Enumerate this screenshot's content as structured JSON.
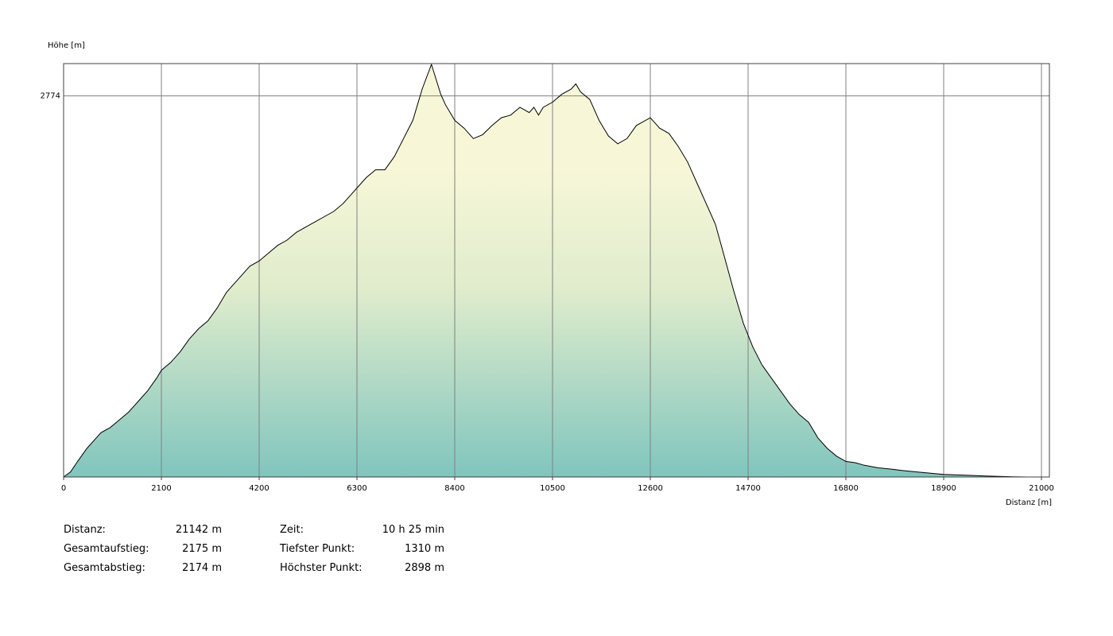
{
  "chart_data": {
    "type": "area",
    "ylabel": "Höhe [m]",
    "xlabel": "Distanz [m]",
    "xlim": [
      0,
      21142
    ],
    "ylim": [
      1310,
      2898
    ],
    "x_ticks": [
      0,
      2100,
      4200,
      6300,
      8400,
      10500,
      12600,
      14700,
      16800,
      18900,
      21000
    ],
    "x_tick_labels": [
      "0",
      "2100",
      "4200",
      "6300",
      "8400",
      "10500",
      "12600",
      "14700",
      "16800",
      "18900",
      "21000"
    ],
    "y_ticks": [
      2774
    ],
    "y_tick_labels": [
      "2774"
    ],
    "grid": true,
    "x": [
      0,
      150,
      300,
      500,
      700,
      800,
      1000,
      1200,
      1400,
      1600,
      1800,
      2000,
      2100,
      2300,
      2500,
      2700,
      2900,
      3100,
      3300,
      3500,
      3700,
      3900,
      4000,
      4200,
      4400,
      4600,
      4800,
      5000,
      5200,
      5400,
      5600,
      5800,
      6000,
      6200,
      6300,
      6500,
      6700,
      6900,
      7100,
      7300,
      7500,
      7700,
      7900,
      8100,
      8200,
      8400,
      8600,
      8800,
      9000,
      9200,
      9400,
      9600,
      9800,
      10000,
      10100,
      10200,
      10300,
      10500,
      10700,
      10900,
      11000,
      11100,
      11300,
      11500,
      11600,
      11700,
      11900,
      12100,
      12300,
      12600,
      12800,
      13000,
      13200,
      13400,
      13600,
      13800,
      14000,
      14200,
      14400,
      14600,
      14800,
      15000,
      15200,
      15400,
      15600,
      15800,
      16000,
      16200,
      16400,
      16600,
      16700,
      16800,
      17000,
      17200,
      17500,
      17800,
      18000,
      18300,
      18600,
      18900,
      19200,
      19500,
      19800,
      20100,
      20400,
      20700,
      21000,
      21142
    ],
    "y": [
      1310,
      1330,
      1370,
      1420,
      1460,
      1480,
      1500,
      1530,
      1560,
      1600,
      1640,
      1690,
      1720,
      1750,
      1790,
      1840,
      1880,
      1910,
      1960,
      2020,
      2060,
      2100,
      2120,
      2140,
      2170,
      2200,
      2220,
      2250,
      2270,
      2290,
      2310,
      2330,
      2360,
      2400,
      2420,
      2460,
      2490,
      2490,
      2540,
      2610,
      2680,
      2800,
      2895,
      2780,
      2740,
      2680,
      2650,
      2610,
      2625,
      2660,
      2690,
      2700,
      2730,
      2710,
      2730,
      2700,
      2730,
      2750,
      2780,
      2800,
      2820,
      2790,
      2760,
      2680,
      2650,
      2620,
      2590,
      2610,
      2660,
      2690,
      2650,
      2630,
      2580,
      2520,
      2440,
      2360,
      2280,
      2150,
      2020,
      1900,
      1810,
      1740,
      1690,
      1640,
      1590,
      1550,
      1520,
      1460,
      1420,
      1390,
      1380,
      1370,
      1365,
      1355,
      1345,
      1340,
      1335,
      1330,
      1325,
      1320,
      1318,
      1316,
      1314,
      1312,
      1311,
      1310,
      1310,
      1310
    ]
  },
  "stats": {
    "distance_label": "Distanz:",
    "distance_value": "21142 m",
    "ascent_label": "Gesamtaufstieg:",
    "ascent_value": "2175 m",
    "descent_label": "Gesamtabstieg:",
    "descent_value": "2174 m",
    "time_label": "Zeit:",
    "time_value": "10 h 25 min",
    "lowest_label": "Tiefster Punkt:",
    "lowest_value": "1310 m",
    "highest_label": "Höchster Punkt:",
    "highest_value": "2898 m"
  },
  "colors": {
    "gradient_top": "#f7f7d8",
    "gradient_mid": "#dfeccc",
    "gradient_bottom": "#80c5be",
    "grid": "#808080",
    "line": "#000000"
  }
}
